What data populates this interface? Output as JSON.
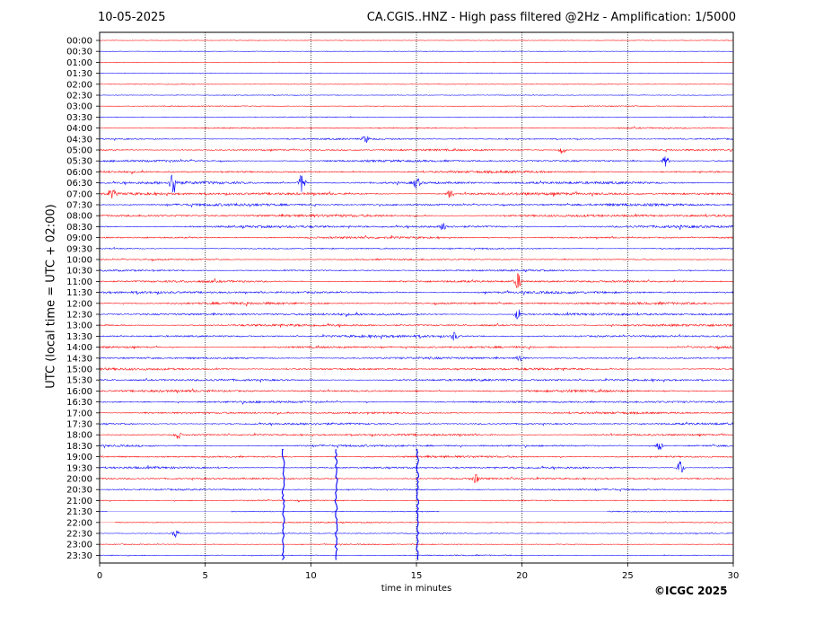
{
  "header": {
    "date": "10-05-2025",
    "title": "CA.CGIS..HNZ - High pass filtered @2Hz - Amplification: 1/5000"
  },
  "footer": {
    "copyright": "©ICGC 2025"
  },
  "chart_data": {
    "type": "line",
    "title": "CA.CGIS..HNZ - High pass filtered @2Hz - Amplification: 1/5000",
    "xlabel": "time in minutes",
    "ylabel": "UTC (local time = UTC + 02:00)",
    "xlim": [
      0,
      30
    ],
    "xticks": [
      0,
      5,
      10,
      15,
      20,
      25,
      30
    ],
    "vertical_gridlines_at": [
      5,
      10,
      15,
      20,
      25
    ],
    "row_labels": [
      "00:00",
      "00:30",
      "01:00",
      "01:30",
      "02:00",
      "02:30",
      "03:00",
      "03:30",
      "04:00",
      "04:30",
      "05:00",
      "05:30",
      "06:00",
      "06:30",
      "07:00",
      "07:30",
      "08:00",
      "08:30",
      "09:00",
      "09:30",
      "10:00",
      "10:30",
      "11:00",
      "11:30",
      "12:00",
      "12:30",
      "13:00",
      "13:30",
      "14:00",
      "14:30",
      "15:00",
      "15:30",
      "16:00",
      "16:30",
      "17:00",
      "17:30",
      "18:00",
      "18:30",
      "19:00",
      "19:30",
      "20:00",
      "20:30",
      "21:00",
      "21:30",
      "22:00",
      "22:30",
      "23:00",
      "23:30"
    ],
    "series_colors": {
      "even_rows": "#ff0000",
      "odd_rows": "#0000ff"
    },
    "noise_level": [
      0.3,
      0.3,
      0.3,
      0.3,
      0.4,
      0.4,
      0.5,
      0.5,
      0.8,
      0.9,
      1.1,
      1.3,
      1.3,
      1.6,
      1.6,
      1.5,
      1.6,
      1.5,
      1.2,
      0.9,
      0.9,
      1.0,
      1.3,
      1.4,
      1.4,
      1.4,
      1.4,
      1.4,
      1.3,
      1.3,
      1.3,
      1.3,
      1.3,
      1.2,
      1.2,
      1.2,
      1.2,
      1.2,
      1.2,
      1.2,
      1.1,
      0.9,
      0.7,
      0.6,
      0.7,
      0.6,
      0.6,
      0.6
    ],
    "events": [
      {
        "row": 13,
        "minute": 3.5,
        "amplitude": 2.5
      },
      {
        "row": 13,
        "minute": 9.6,
        "amplitude": 2.0
      },
      {
        "row": 13,
        "minute": 15.0,
        "amplitude": 1.0
      },
      {
        "row": 14,
        "minute": 0.6,
        "amplitude": 0.8
      },
      {
        "row": 14,
        "minute": 16.6,
        "amplitude": 0.8
      },
      {
        "row": 10,
        "minute": 21.9,
        "amplitude": 0.8
      },
      {
        "row": 11,
        "minute": 26.8,
        "amplitude": 1.0
      },
      {
        "row": 9,
        "minute": 12.6,
        "amplitude": 0.7
      },
      {
        "row": 17,
        "minute": 16.3,
        "amplitude": 0.9
      },
      {
        "row": 22,
        "minute": 19.8,
        "amplitude": 1.5
      },
      {
        "row": 25,
        "minute": 19.8,
        "amplitude": 1.0
      },
      {
        "row": 27,
        "minute": 16.8,
        "amplitude": 0.8
      },
      {
        "row": 29,
        "minute": 19.9,
        "amplitude": 0.8
      },
      {
        "row": 36,
        "minute": 3.7,
        "amplitude": 0.8
      },
      {
        "row": 37,
        "minute": 26.5,
        "amplitude": 0.8
      },
      {
        "row": 39,
        "minute": 27.5,
        "amplitude": 1.5
      },
      {
        "row": 40,
        "minute": 17.8,
        "amplitude": 0.8
      },
      {
        "row": 45,
        "minute": 3.6,
        "amplitude": 0.8
      }
    ],
    "spikes": [
      {
        "minute": 8.7,
        "from_row": 38,
        "to_row": 47
      },
      {
        "minute": 11.2,
        "from_row": 38,
        "to_row": 47
      },
      {
        "minute": 15.05,
        "from_row": 38,
        "to_row": 47
      }
    ],
    "gaps": [
      {
        "row": 43,
        "from_minute": 0.4,
        "to_minute": 6.2
      },
      {
        "row": 43,
        "from_minute": 16.1,
        "to_minute": 24.0
      },
      {
        "row": 44,
        "from_minute": 0.0,
        "to_minute": 0.7
      }
    ]
  }
}
